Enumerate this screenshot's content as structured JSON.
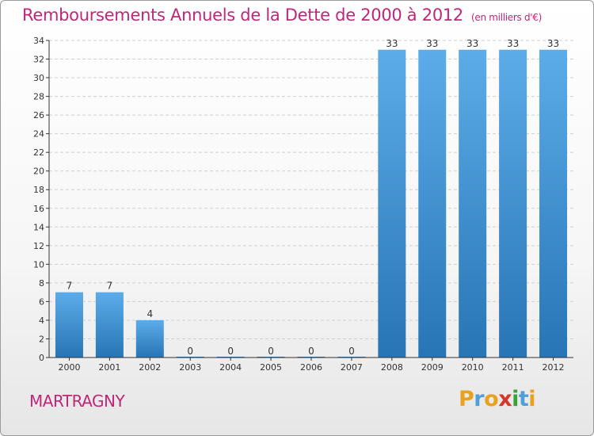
{
  "title": "Remboursements Annuels de la Dette de 2000 à 2012",
  "unit": "(en milliers d'€)",
  "commune": "MARTRAGNY",
  "brand": {
    "letters": [
      "P",
      "r",
      "o",
      "x",
      "i",
      "t",
      "i"
    ],
    "colors": [
      "#e8a21d",
      "#4f9ed8",
      "#e8a21d",
      "#d8352b",
      "#3aa23a",
      "#4f9ed8",
      "#e8a21d"
    ]
  },
  "colors": {
    "title": "#c0267a",
    "bar_top": "#5dacea",
    "bar_bottom": "#2775b4",
    "axis": "#333333",
    "grid": "#cfcfcf"
  },
  "chart_data": {
    "type": "bar",
    "categories": [
      "2000",
      "2001",
      "2002",
      "2003",
      "2004",
      "2005",
      "2006",
      "2007",
      "2008",
      "2009",
      "2010",
      "2011",
      "2012"
    ],
    "values": [
      7,
      7,
      4,
      0,
      0,
      0,
      0,
      0,
      33,
      33,
      33,
      33,
      33
    ],
    "data_labels": [
      "7",
      "7",
      "4",
      "0",
      "0",
      "0",
      "0",
      "0",
      "33",
      "33",
      "33",
      "33",
      "33"
    ],
    "yticks": [
      "0",
      "2",
      "4",
      "6",
      "8",
      "10",
      "12",
      "14",
      "16",
      "18",
      "20",
      "22",
      "24",
      "26",
      "28",
      "30",
      "32",
      "34"
    ],
    "ylim": [
      0,
      34
    ],
    "grid": true,
    "grid_axis": "y",
    "legend": "none"
  }
}
